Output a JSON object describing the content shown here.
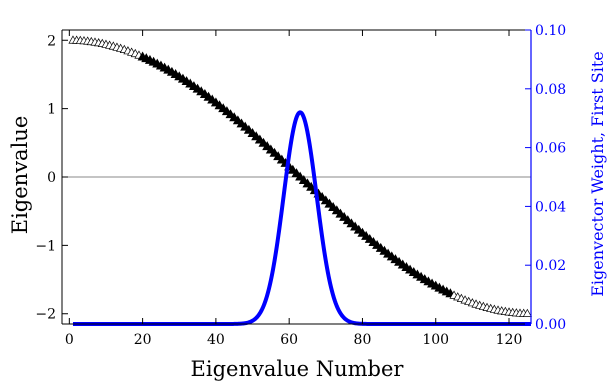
{
  "chart_data": {
    "type": "scatter",
    "title": "",
    "xlabel": "Eigenvalue Number",
    "ylabel": "Eigenvalue",
    "y2label": "Eigenvector Weight, First Site",
    "xlim": [
      -2,
      126
    ],
    "ylim": [
      -2.15,
      2.15
    ],
    "y2lim": [
      0,
      0.1
    ],
    "x_ticks": [
      0,
      20,
      40,
      60,
      80,
      100,
      120
    ],
    "y_ticks": [
      -2,
      -1,
      0,
      1,
      2
    ],
    "y_tick_labels": [
      "−2",
      "−1",
      "0",
      "1",
      "2"
    ],
    "y2_ticks": [
      0,
      0.02,
      0.04,
      0.06,
      0.08,
      0.1
    ],
    "y2_tick_labels": [
      "0.00",
      "0.02",
      "0.04",
      "0.06",
      "0.08",
      "0.10"
    ],
    "zero_line_y": 0,
    "colors": {
      "axes": "#000000",
      "right_axis": "#0000ff",
      "weight_curve": "#0000ff",
      "markers": "#000000"
    },
    "series": [
      {
        "kind": "eigenvalues",
        "marker": "open-triangle-up",
        "n": 125,
        "x_range": [
          1,
          125
        ],
        "values_formula": "2*cos(pi*k/126), k = 1..125",
        "filled_range": [
          20,
          104
        ]
      },
      {
        "kind": "eigenvector-weight",
        "axis": "right",
        "line": "solid",
        "peak_x": 63,
        "peak_value": 0.072,
        "width_sigma": 4.5,
        "baseline": 0
      }
    ]
  }
}
